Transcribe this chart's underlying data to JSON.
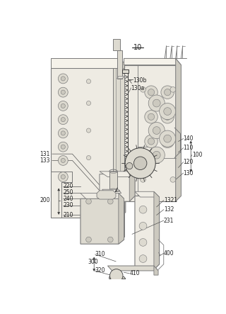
{
  "bg_color": "#ffffff",
  "line_color": "#7a7a7a",
  "dark_line": "#3a3a3a",
  "light_fill": "#eeebe3",
  "mid_fill": "#dddad0",
  "dark_fill": "#ccc9bf",
  "title": "10",
  "fig_width": 3.2,
  "fig_height": 4.43,
  "dpi": 100
}
